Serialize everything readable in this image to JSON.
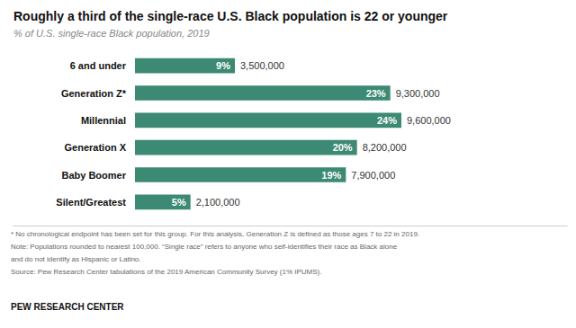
{
  "chart_data": {
    "type": "bar",
    "orientation": "horizontal",
    "title": "Roughly a third of the single-race U.S. Black population is 22 or younger",
    "subtitle": "% of U.S. single-race Black population, 2019",
    "categories": [
      "6 and under",
      "Generation Z*",
      "Millennial",
      "Generation X",
      "Baby Boomer",
      "Silent/Greatest"
    ],
    "values": [
      9,
      23,
      24,
      20,
      19,
      5
    ],
    "value_labels": [
      "9%",
      "23%",
      "24%",
      "20%",
      "19%",
      "5%"
    ],
    "populations": [
      "3,500,000",
      "9,300,000",
      "9,600,000",
      "8,200,000",
      "7,900,000",
      "2,100,000"
    ],
    "color": "#3d8a74",
    "xlim": [
      0,
      30
    ],
    "data_labels": true,
    "tick_labels": "y",
    "grid": false,
    "notes": [
      "* No chronological endpoint has been set for this group. For this analysis, Generation Z is defined as those ages 7 to 22 in 2019.",
      "Note: Populations rounded to nearest 100,000. “Single race” refers to anyone who self-identifies their race as Black alone",
      "and do not identify as Hispanic or Latino.",
      "Source: Pew Research Center tabulations of the 2019 American Community Survey (1% IPUMS)."
    ],
    "branding": "PEW RESEARCH CENTER"
  }
}
